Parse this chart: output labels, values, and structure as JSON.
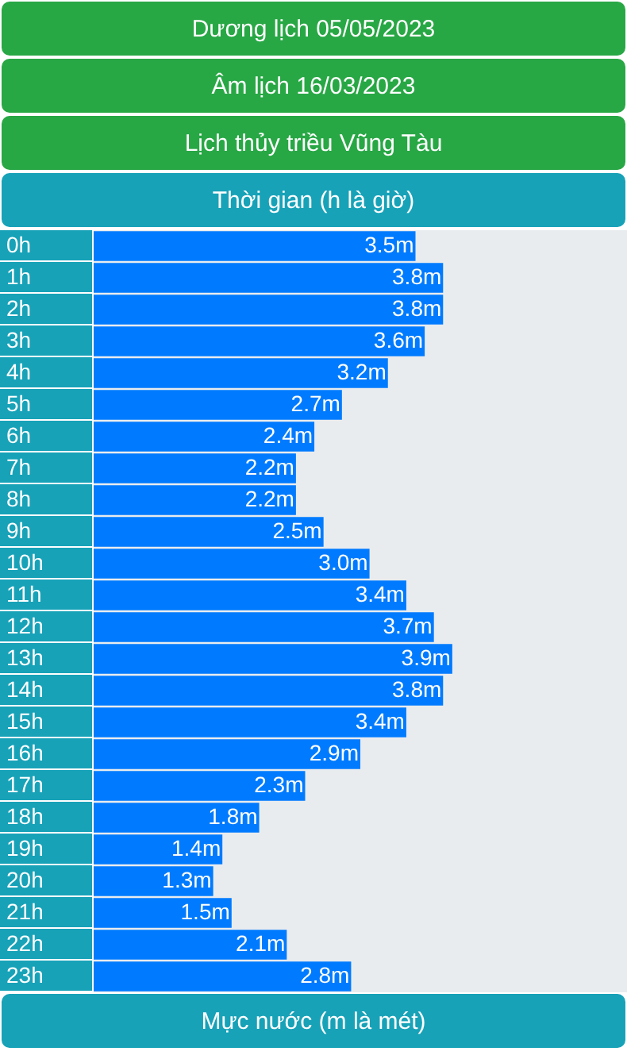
{
  "chart_data": {
    "type": "bar",
    "orientation": "horizontal",
    "title": "Dương lịch 05/05/2023",
    "subtitle": "Âm lịch 16/03/2023",
    "annotations": [
      "Lịch thủy triều Vũng Tàu"
    ],
    "ylabel": "Thời gian (h là giờ)",
    "xlabel": "Mực nước (m là mét)",
    "categories": [
      "0h",
      "1h",
      "2h",
      "3h",
      "4h",
      "5h",
      "6h",
      "7h",
      "8h",
      "9h",
      "10h",
      "11h",
      "12h",
      "13h",
      "14h",
      "15h",
      "16h",
      "17h",
      "18h",
      "19h",
      "20h",
      "21h",
      "22h",
      "23h"
    ],
    "values": [
      3.5,
      3.8,
      3.8,
      3.6,
      3.2,
      2.7,
      2.4,
      2.2,
      2.2,
      2.5,
      3.0,
      3.4,
      3.7,
      3.9,
      3.8,
      3.4,
      2.9,
      2.3,
      1.8,
      1.4,
      1.3,
      1.5,
      2.1,
      2.8
    ],
    "value_labels": [
      "3.5m",
      "3.8m",
      "3.8m",
      "3.6m",
      "3.2m",
      "2.7m",
      "2.4m",
      "2.2m",
      "2.2m",
      "2.5m",
      "3.0m",
      "3.4m",
      "3.7m",
      "3.9m",
      "3.8m",
      "3.4m",
      "2.9m",
      "2.3m",
      "1.8m",
      "1.4m",
      "1.3m",
      "1.5m",
      "2.1m",
      "2.8m"
    ],
    "color": "#007bff",
    "xlim": [
      0,
      5.8
    ],
    "tick_labels": "y",
    "legend": false
  }
}
